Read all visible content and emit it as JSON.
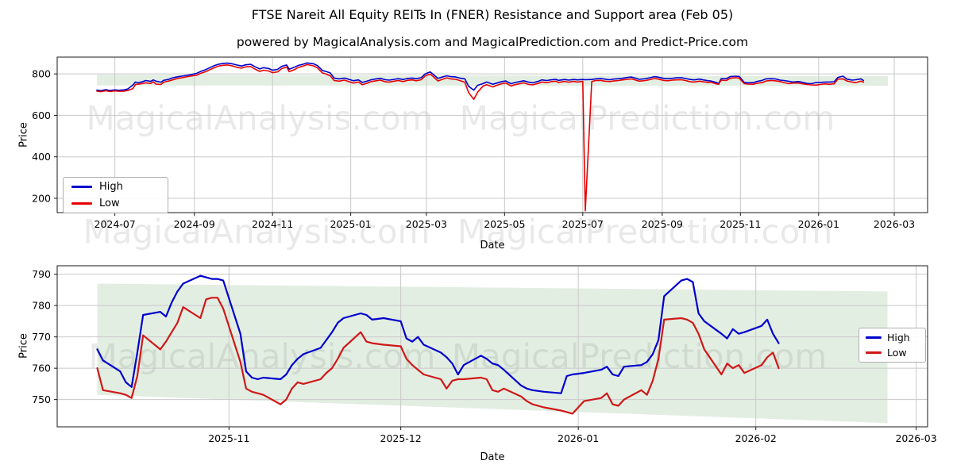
{
  "title": "FTSE Nareit All Equity REITs In (FNER) Resistance and Support area (Feb 05)",
  "subtitle": "powered by MagicalAnalysis.com and MagicalPrediction.com and Predict-Price.com",
  "watermark": {
    "left": "MagicalAnalysis.com",
    "right": "MagicalPrediction.com",
    "color": "rgba(0,0,0,0.085)"
  },
  "colors": {
    "grid": "#c8c8c8",
    "spine": "#1a1a1a",
    "band": "rgba(80,148,80,0.16)",
    "background": "#ffffff",
    "tick_text": "#000000"
  },
  "chart_data": [
    {
      "type": "line",
      "name": "top",
      "ylabel": "Price",
      "xlabel": "Date",
      "legend": [
        "High",
        "Low"
      ],
      "legend_position": "lower left",
      "grid": true,
      "colors": {
        "high": "#0000cd",
        "low": "#e80000"
      },
      "xlim": [
        "2024-05-17",
        "2026-03-27"
      ],
      "ylim": [
        131,
        881
      ],
      "yticks": [
        200,
        400,
        600,
        800
      ],
      "xticks": [
        {
          "date": "2024-07-01",
          "label": "2024-07"
        },
        {
          "date": "2024-09-01",
          "label": "2024-09"
        },
        {
          "date": "2024-11-01",
          "label": "2024-11"
        },
        {
          "date": "2025-01-01",
          "label": "2025-01"
        },
        {
          "date": "2025-03-01",
          "label": "2025-03"
        },
        {
          "date": "2025-05-01",
          "label": "2025-05"
        },
        {
          "date": "2025-07-01",
          "label": "2025-07"
        },
        {
          "date": "2025-09-01",
          "label": "2025-09"
        },
        {
          "date": "2025-11-01",
          "label": "2025-11"
        },
        {
          "date": "2026-01-01",
          "label": "2026-01"
        },
        {
          "date": "2026-03-01",
          "label": "2026-03"
        }
      ],
      "band": {
        "x0": "2024-06-17",
        "x1": "2026-02-24",
        "top0": 796,
        "top1": 789,
        "bot0": 744,
        "bot1": 743
      },
      "dates": [
        "2024-06-17",
        "2024-06-20",
        "2024-06-24",
        "2024-06-27",
        "2024-07-01",
        "2024-07-04",
        "2024-07-08",
        "2024-07-11",
        "2024-07-15",
        "2024-07-17",
        "2024-07-19",
        "2024-07-23",
        "2024-07-25",
        "2024-07-29",
        "2024-07-31",
        "2024-08-02",
        "2024-08-06",
        "2024-08-08",
        "2024-08-12",
        "2024-08-15",
        "2024-08-19",
        "2024-08-22",
        "2024-08-26",
        "2024-08-29",
        "2024-09-03",
        "2024-09-06",
        "2024-09-10",
        "2024-09-13",
        "2024-09-17",
        "2024-09-20",
        "2024-09-24",
        "2024-09-27",
        "2024-10-01",
        "2024-10-04",
        "2024-10-08",
        "2024-10-11",
        "2024-10-15",
        "2024-10-18",
        "2024-10-22",
        "2024-10-25",
        "2024-10-29",
        "2024-11-01",
        "2024-11-05",
        "2024-11-08",
        "2024-11-12",
        "2024-11-14",
        "2024-11-18",
        "2024-11-21",
        "2024-11-25",
        "2024-11-28",
        "2024-12-03",
        "2024-12-06",
        "2024-12-10",
        "2024-12-12",
        "2024-12-16",
        "2024-12-19",
        "2024-12-23",
        "2024-12-27",
        "2024-12-31",
        "2025-01-03",
        "2025-01-07",
        "2025-01-10",
        "2025-01-14",
        "2025-01-17",
        "2025-01-21",
        "2025-01-24",
        "2025-01-28",
        "2025-01-31",
        "2025-02-04",
        "2025-02-07",
        "2025-02-11",
        "2025-02-14",
        "2025-02-18",
        "2025-02-21",
        "2025-02-25",
        "2025-02-28",
        "2025-03-04",
        "2025-03-06",
        "2025-03-10",
        "2025-03-13",
        "2025-03-17",
        "2025-03-20",
        "2025-03-24",
        "2025-03-27",
        "2025-03-31",
        "2025-04-03",
        "2025-04-07",
        "2025-04-10",
        "2025-04-14",
        "2025-04-17",
        "2025-04-22",
        "2025-04-25",
        "2025-04-29",
        "2025-05-02",
        "2025-05-06",
        "2025-05-09",
        "2025-05-13",
        "2025-05-16",
        "2025-05-20",
        "2025-05-23",
        "2025-05-28",
        "2025-05-30",
        "2025-06-03",
        "2025-06-06",
        "2025-06-10",
        "2025-06-12",
        "2025-06-17",
        "2025-06-20",
        "2025-06-24",
        "2025-06-27",
        "2025-07-01",
        "2025-07-03",
        "2025-07-08",
        "2025-07-11",
        "2025-07-15",
        "2025-07-18",
        "2025-07-22",
        "2025-07-25",
        "2025-07-29",
        "2025-08-01",
        "2025-08-05",
        "2025-08-08",
        "2025-08-12",
        "2025-08-14",
        "2025-08-19",
        "2025-08-22",
        "2025-08-26",
        "2025-08-29",
        "2025-09-02",
        "2025-09-05",
        "2025-09-09",
        "2025-09-12",
        "2025-09-16",
        "2025-09-19",
        "2025-09-23",
        "2025-09-26",
        "2025-09-30",
        "2025-10-03",
        "2025-10-07",
        "2025-10-09",
        "2025-10-13",
        "2025-10-15",
        "2025-10-17",
        "2025-10-21",
        "2025-10-24",
        "2025-10-28",
        "2025-10-31",
        "2025-11-04",
        "2025-11-07",
        "2025-11-11",
        "2025-11-14",
        "2025-11-18",
        "2025-11-21",
        "2025-11-25",
        "2025-11-28",
        "2025-12-02",
        "2025-12-05",
        "2025-12-09",
        "2025-12-12",
        "2025-12-16",
        "2025-12-19",
        "2025-12-23",
        "2025-12-26",
        "2025-12-30",
        "2026-01-02",
        "2026-01-06",
        "2026-01-09",
        "2026-01-13",
        "2026-01-16",
        "2026-01-20",
        "2026-01-23",
        "2026-01-27",
        "2026-01-30",
        "2026-02-03",
        "2026-02-05"
      ],
      "high": [
        722,
        719,
        724,
        720,
        723,
        721,
        723,
        727,
        746,
        761,
        757,
        763,
        768,
        764,
        771,
        765,
        760,
        769,
        774,
        781,
        786,
        789,
        793,
        796,
        803,
        812,
        821,
        830,
        841,
        847,
        851,
        852,
        848,
        843,
        838,
        844,
        846,
        836,
        824,
        830,
        826,
        818,
        822,
        836,
        843,
        823,
        832,
        841,
        847,
        853,
        849,
        840,
        816,
        813,
        805,
        780,
        776,
        780,
        773,
        767,
        771,
        759,
        766,
        772,
        776,
        779,
        772,
        770,
        774,
        777,
        773,
        778,
        780,
        777,
        782,
        800,
        810,
        800,
        778,
        784,
        791,
        787,
        785,
        780,
        776,
        740,
        722,
        745,
        753,
        761,
        750,
        756,
        763,
        766,
        753,
        758,
        763,
        767,
        760,
        757,
        766,
        771,
        768,
        771,
        774,
        769,
        773,
        770,
        773,
        771,
        773,
        772,
        773,
        776,
        778,
        775,
        772,
        775,
        777,
        779,
        783,
        785,
        778,
        774,
        777,
        781,
        787,
        784,
        779,
        777,
        779,
        781,
        782,
        778,
        773,
        771,
        775,
        771,
        767,
        766,
        759,
        754,
        777,
        777,
        787,
        789,
        788,
        759,
        757,
        758,
        764,
        769,
        776,
        777,
        776,
        770,
        768,
        764,
        761,
        763,
        760,
        754,
        753,
        758,
        759,
        761,
        761,
        762,
        783,
        789,
        775,
        770,
        772,
        776,
        768
      ],
      "low": [
        717,
        714,
        719,
        715,
        718,
        716,
        717,
        720,
        729,
        749,
        750,
        754,
        757,
        754,
        762,
        751,
        749,
        760,
        766,
        771,
        778,
        781,
        786,
        789,
        794,
        803,
        811,
        820,
        831,
        838,
        842,
        843,
        838,
        832,
        828,
        834,
        836,
        824,
        812,
        818,
        814,
        806,
        810,
        825,
        833,
        811,
        820,
        831,
        838,
        845,
        839,
        829,
        804,
        801,
        791,
        768,
        765,
        770,
        762,
        756,
        761,
        748,
        756,
        763,
        767,
        770,
        762,
        761,
        765,
        768,
        763,
        769,
        771,
        767,
        772,
        790,
        799,
        789,
        766,
        773,
        781,
        776,
        774,
        768,
        760,
        710,
        677,
        712,
        740,
        748,
        737,
        745,
        753,
        756,
        742,
        748,
        753,
        757,
        749,
        747,
        756,
        761,
        758,
        762,
        765,
        759,
        764,
        760,
        764,
        761,
        764,
        140,
        763,
        768,
        769,
        765,
        763,
        766,
        768,
        771,
        774,
        776,
        769,
        765,
        768,
        772,
        778,
        775,
        769,
        767,
        770,
        771,
        772,
        768,
        762,
        761,
        765,
        762,
        759,
        760,
        752,
        750,
        770,
        768,
        779,
        782,
        780,
        753,
        751,
        750,
        755,
        758,
        766,
        768,
        767,
        763,
        758,
        753,
        756,
        756,
        753,
        749,
        747,
        746,
        749,
        752,
        750,
        752,
        775,
        776,
        766,
        761,
        758,
        765,
        760
      ]
    },
    {
      "type": "line",
      "name": "bottom",
      "ylabel": "Price",
      "xlabel": "Date",
      "legend": [
        "High",
        "Low"
      ],
      "legend_position": "center right",
      "grid": true,
      "colors": {
        "high": "#0000cd",
        "low": "#d01818"
      },
      "xlim": [
        "2025-10-02",
        "2026-03-03"
      ],
      "ylim": [
        741.3,
        792.7
      ],
      "yticks": [
        750,
        760,
        770,
        780,
        790
      ],
      "xticks": [
        {
          "date": "2025-11-01",
          "label": "2025-11"
        },
        {
          "date": "2025-12-01",
          "label": "2025-12"
        },
        {
          "date": "2026-01-01",
          "label": "2026-01"
        },
        {
          "date": "2026-02-01",
          "label": "2026-02"
        },
        {
          "date": "2026-03-01",
          "label": "2026-03"
        }
      ],
      "band": {
        "x0": "2025-10-09",
        "x1": "2026-02-24",
        "top0": 787,
        "top1": 784.5,
        "bot0": 751.5,
        "bot1": 742.5
      },
      "dates": [
        "2025-10-09",
        "2025-10-10",
        "2025-10-13",
        "2025-10-14",
        "2025-10-15",
        "2025-10-16",
        "2025-10-17",
        "2025-10-20",
        "2025-10-21",
        "2025-10-22",
        "2025-10-23",
        "2025-10-24",
        "2025-10-27",
        "2025-10-28",
        "2025-10-29",
        "2025-10-30",
        "2025-10-31",
        "2025-11-03",
        "2025-11-04",
        "2025-11-05",
        "2025-11-06",
        "2025-11-07",
        "2025-11-10",
        "2025-11-11",
        "2025-11-12",
        "2025-11-13",
        "2025-11-14",
        "2025-11-17",
        "2025-11-18",
        "2025-11-19",
        "2025-11-20",
        "2025-11-21",
        "2025-11-24",
        "2025-11-25",
        "2025-11-26",
        "2025-11-28",
        "2025-12-01",
        "2025-12-02",
        "2025-12-03",
        "2025-12-04",
        "2025-12-05",
        "2025-12-08",
        "2025-12-09",
        "2025-12-10",
        "2025-12-11",
        "2025-12-12",
        "2025-12-15",
        "2025-12-16",
        "2025-12-17",
        "2025-12-18",
        "2025-12-19",
        "2025-12-22",
        "2025-12-23",
        "2025-12-24",
        "2025-12-26",
        "2025-12-29",
        "2025-12-30",
        "2025-12-31",
        "2026-01-02",
        "2026-01-05",
        "2026-01-06",
        "2026-01-07",
        "2026-01-08",
        "2026-01-09",
        "2026-01-12",
        "2026-01-13",
        "2026-01-14",
        "2026-01-15",
        "2026-01-16",
        "2026-01-19",
        "2026-01-20",
        "2026-01-21",
        "2026-01-22",
        "2026-01-23",
        "2026-01-26",
        "2026-01-27",
        "2026-01-28",
        "2026-01-29",
        "2026-01-30",
        "2026-02-02",
        "2026-02-03",
        "2026-02-04",
        "2026-02-05"
      ],
      "high": [
        766,
        762.5,
        759,
        755.5,
        754,
        765,
        777,
        778,
        776.5,
        781,
        784.5,
        787,
        789.5,
        789,
        788.5,
        788.5,
        788,
        771,
        759,
        757,
        756.5,
        757,
        756.5,
        758,
        761,
        763,
        764.5,
        766.5,
        769,
        771.5,
        774.5,
        776,
        777.5,
        777,
        775.5,
        776,
        775,
        769.5,
        768.5,
        770,
        767.5,
        765,
        763.5,
        761.5,
        758,
        761,
        764,
        763,
        761.5,
        761,
        759.5,
        754.5,
        753.5,
        753,
        752.5,
        752,
        757.5,
        758,
        758.5,
        759.5,
        760.5,
        758,
        757.5,
        760.5,
        761,
        762,
        764.5,
        769,
        783,
        788,
        788.5,
        787.5,
        777.5,
        775,
        771,
        769.5,
        772.5,
        771,
        771.5,
        773.5,
        775.5,
        771,
        768
      ],
      "low": [
        760,
        753,
        752,
        751.5,
        750.5,
        757.5,
        770.5,
        766,
        768.5,
        771.5,
        774.5,
        779.5,
        776,
        782,
        782.5,
        782.5,
        779,
        762,
        753.5,
        752.5,
        752,
        751.5,
        748.5,
        750,
        753.5,
        755.5,
        755,
        756.5,
        758.5,
        760,
        763,
        766.5,
        771.5,
        768.5,
        768,
        767.5,
        767,
        763,
        761,
        759.5,
        758,
        756.5,
        753.5,
        756,
        756.5,
        756.5,
        757,
        756.5,
        753,
        752.5,
        753.5,
        751,
        749.5,
        748.5,
        747.5,
        746.5,
        746,
        745.5,
        749.5,
        750.5,
        752,
        748.5,
        748,
        750,
        753,
        751.5,
        756,
        763,
        775.5,
        776,
        775.5,
        774.5,
        771,
        766,
        758,
        761.5,
        760,
        761,
        758.5,
        761,
        763.5,
        765,
        760
      ]
    }
  ]
}
